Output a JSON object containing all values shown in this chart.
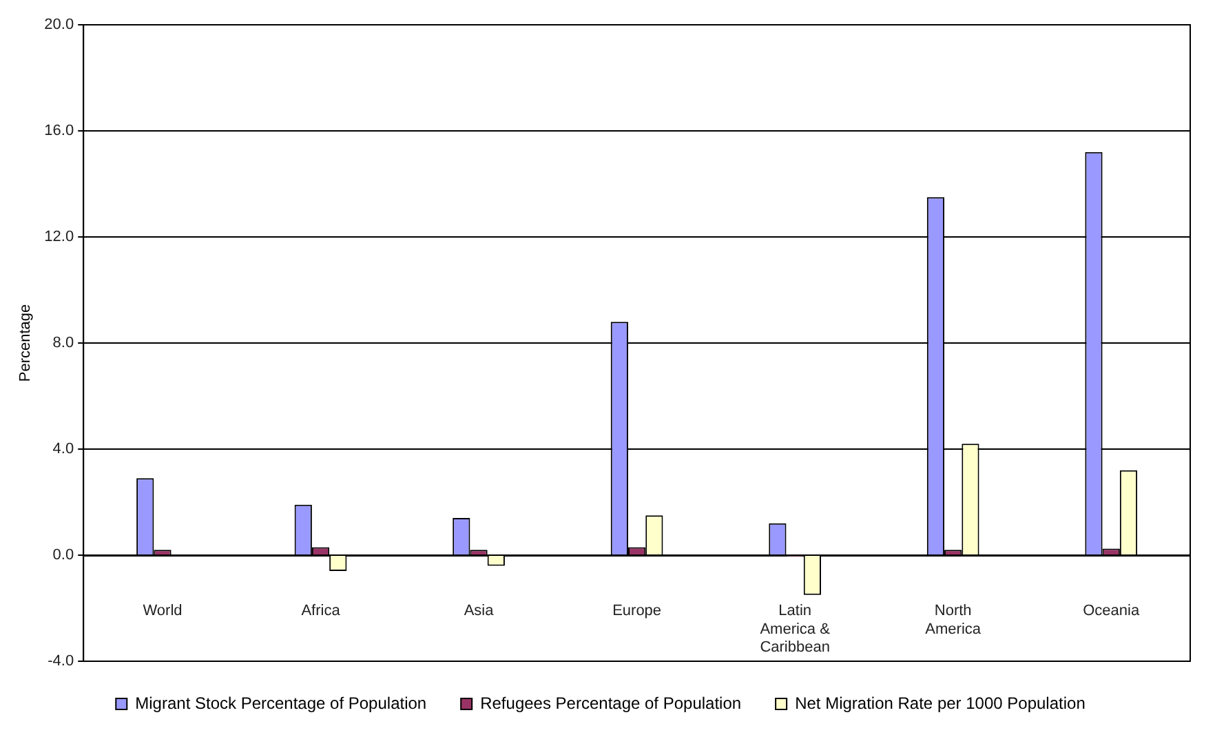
{
  "chart_data": {
    "type": "bar",
    "ylabel": "Percentage",
    "categories": [
      "World",
      "Africa",
      "Asia",
      "Europe",
      "Latin America & Caribbean",
      "North America",
      "Oceania"
    ],
    "series": [
      {
        "name": "Migrant Stock Percentage of Population",
        "color": "#9999ff",
        "values": [
          2.9,
          1.9,
          1.4,
          8.8,
          1.2,
          13.5,
          15.2
        ]
      },
      {
        "name": "Refugees Percentage of Population",
        "color": "#993366",
        "values": [
          0.2,
          0.3,
          0.2,
          0.3,
          -0.05,
          0.2,
          0.25
        ]
      },
      {
        "name": "Net Migration Rate per 1000 Population",
        "color": "#ffffcc",
        "values": [
          0,
          -0.6,
          -0.4,
          1.5,
          -1.5,
          4.2,
          3.2
        ]
      }
    ],
    "ylim": [
      -4,
      20
    ],
    "yticks": [
      {
        "value": -4,
        "label": "-4.0"
      },
      {
        "value": 0,
        "label": "0.0"
      },
      {
        "value": 4,
        "label": "4.0"
      },
      {
        "value": 8,
        "label": "8.0"
      },
      {
        "value": 12,
        "label": "12.0"
      },
      {
        "value": 16,
        "label": "16.0"
      },
      {
        "value": 20,
        "label": "20.0"
      }
    ],
    "grid": "y",
    "legend": "bottom"
  }
}
